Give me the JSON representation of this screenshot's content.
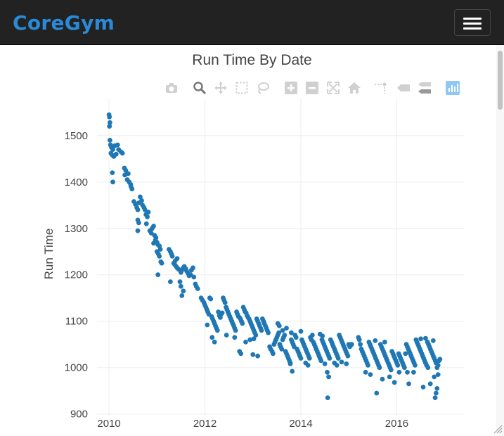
{
  "navbar": {
    "brand": "CoreGym",
    "brand_color": "#2a8ad8",
    "background": "#222222"
  },
  "modebar": {
    "icons": [
      "camera-icon",
      "zoom-icon",
      "pan-icon",
      "box-select-icon",
      "lasso-select-icon",
      "zoom-in-icon",
      "zoom-out-icon",
      "autoscale-icon",
      "reset-axes-icon",
      "spike-lines-icon",
      "hover-closest-icon",
      "hover-compare-icon",
      "plotly-logo-icon"
    ]
  },
  "chart_data": {
    "type": "scatter",
    "title": "Run Time By Date",
    "xlabel": "",
    "ylabel": "Run Time",
    "x_ticks": [
      "2010",
      "2012",
      "2014",
      "2016"
    ],
    "y_ticks": [
      900,
      1000,
      1100,
      1200,
      1300,
      1400,
      1500
    ],
    "xlim": [
      2009.75,
      2017.4
    ],
    "ylim": [
      895,
      1580
    ],
    "grid": true,
    "marker_color": "#1f77b4",
    "points": [
      [
        2010.0,
        1545
      ],
      [
        2010.01,
        1540
      ],
      [
        2010.02,
        1528
      ],
      [
        2010.01,
        1520
      ],
      [
        2010.02,
        1490
      ],
      [
        2010.03,
        1480
      ],
      [
        2010.05,
        1475
      ],
      [
        2010.08,
        1470
      ],
      [
        2010.04,
        1462
      ],
      [
        2010.07,
        1458
      ],
      [
        2010.12,
        1478
      ],
      [
        2010.18,
        1480
      ],
      [
        2010.2,
        1470
      ],
      [
        2010.15,
        1460
      ],
      [
        2010.25,
        1465
      ],
      [
        2010.28,
        1462
      ],
      [
        2010.1,
        1455
      ],
      [
        2010.07,
        1420
      ],
      [
        2010.08,
        1400
      ],
      [
        2010.32,
        1430
      ],
      [
        2010.35,
        1425
      ],
      [
        2010.33,
        1415
      ],
      [
        2010.38,
        1405
      ],
      [
        2010.4,
        1418
      ],
      [
        2010.42,
        1400
      ],
      [
        2010.45,
        1395
      ],
      [
        2010.46,
        1390
      ],
      [
        2010.48,
        1385
      ],
      [
        2010.52,
        1358
      ],
      [
        2010.55,
        1352
      ],
      [
        2010.58,
        1345
      ],
      [
        2010.6,
        1340
      ],
      [
        2010.62,
        1355
      ],
      [
        2010.65,
        1368
      ],
      [
        2010.68,
        1360
      ],
      [
        2010.7,
        1350
      ],
      [
        2010.73,
        1345
      ],
      [
        2010.75,
        1340
      ],
      [
        2010.77,
        1330
      ],
      [
        2010.8,
        1325
      ],
      [
        2010.82,
        1335
      ],
      [
        2010.6,
        1318
      ],
      [
        2010.62,
        1312
      ],
      [
        2010.6,
        1295
      ],
      [
        2010.78,
        1310
      ],
      [
        2010.85,
        1295
      ],
      [
        2010.88,
        1290
      ],
      [
        2010.9,
        1300
      ],
      [
        2010.93,
        1305
      ],
      [
        2010.95,
        1285
      ],
      [
        2010.97,
        1275
      ],
      [
        2011.0,
        1270
      ],
      [
        2011.02,
        1265
      ],
      [
        2011.05,
        1262
      ],
      [
        2011.07,
        1255
      ],
      [
        2011.0,
        1250
      ],
      [
        2011.03,
        1245
      ],
      [
        2011.05,
        1240
      ],
      [
        2010.93,
        1268
      ],
      [
        2010.98,
        1280
      ],
      [
        2011.08,
        1228
      ],
      [
        2011.1,
        1225
      ],
      [
        2011.02,
        1200
      ],
      [
        2011.25,
        1255
      ],
      [
        2011.28,
        1250
      ],
      [
        2011.3,
        1245
      ],
      [
        2011.32,
        1240
      ],
      [
        2011.35,
        1225
      ],
      [
        2011.37,
        1222
      ],
      [
        2011.4,
        1218
      ],
      [
        2011.42,
        1215
      ],
      [
        2011.45,
        1212
      ],
      [
        2011.48,
        1210
      ],
      [
        2011.5,
        1205
      ],
      [
        2011.52,
        1210
      ],
      [
        2011.55,
        1215
      ],
      [
        2011.57,
        1218
      ],
      [
        2011.6,
        1213
      ],
      [
        2011.62,
        1208
      ],
      [
        2011.65,
        1203
      ],
      [
        2011.67,
        1198
      ],
      [
        2011.7,
        1200
      ],
      [
        2011.72,
        1210
      ],
      [
        2011.75,
        1215
      ],
      [
        2011.77,
        1195
      ],
      [
        2011.8,
        1180
      ],
      [
        2011.82,
        1175
      ],
      [
        2011.85,
        1170
      ],
      [
        2011.48,
        1185
      ],
      [
        2011.5,
        1175
      ],
      [
        2011.55,
        1165
      ],
      [
        2011.38,
        1230
      ],
      [
        2011.42,
        1235
      ],
      [
        2011.28,
        1185
      ],
      [
        2011.52,
        1155
      ],
      [
        2011.92,
        1150
      ],
      [
        2011.95,
        1145
      ],
      [
        2011.98,
        1140
      ],
      [
        2012.0,
        1135
      ],
      [
        2012.02,
        1130
      ],
      [
        2012.04,
        1125
      ],
      [
        2012.06,
        1120
      ],
      [
        2012.08,
        1115
      ],
      [
        2012.1,
        1150
      ],
      [
        2012.12,
        1148
      ],
      [
        2012.14,
        1110
      ],
      [
        2012.16,
        1105
      ],
      [
        2012.18,
        1100
      ],
      [
        2012.2,
        1095
      ],
      [
        2012.22,
        1090
      ],
      [
        2012.24,
        1085
      ],
      [
        2012.26,
        1080
      ],
      [
        2012.28,
        1120
      ],
      [
        2012.3,
        1112
      ],
      [
        2012.32,
        1108
      ],
      [
        2012.34,
        1115
      ],
      [
        2012.36,
        1118
      ],
      [
        2012.38,
        1150
      ],
      [
        2012.4,
        1145
      ],
      [
        2012.42,
        1140
      ],
      [
        2012.44,
        1130
      ],
      [
        2012.46,
        1125
      ],
      [
        2012.48,
        1120
      ],
      [
        2012.5,
        1115
      ],
      [
        2012.52,
        1110
      ],
      [
        2012.54,
        1105
      ],
      [
        2012.56,
        1100
      ],
      [
        2012.58,
        1095
      ],
      [
        2012.6,
        1090
      ],
      [
        2012.62,
        1085
      ],
      [
        2012.64,
        1080
      ],
      [
        2012.66,
        1120
      ],
      [
        2012.68,
        1115
      ],
      [
        2012.7,
        1110
      ],
      [
        2012.72,
        1108
      ],
      [
        2012.74,
        1105
      ],
      [
        2012.76,
        1100
      ],
      [
        2012.78,
        1095
      ],
      [
        2012.8,
        1130
      ],
      [
        2012.82,
        1125
      ],
      [
        2012.84,
        1120
      ],
      [
        2012.86,
        1118
      ],
      [
        2012.88,
        1112
      ],
      [
        2012.9,
        1108
      ],
      [
        2012.92,
        1105
      ],
      [
        2012.94,
        1100
      ],
      [
        2012.96,
        1095
      ],
      [
        2012.98,
        1090
      ],
      [
        2013.0,
        1085
      ],
      [
        2013.02,
        1080
      ],
      [
        2013.04,
        1075
      ],
      [
        2013.06,
        1070
      ],
      [
        2013.08,
        1105
      ],
      [
        2013.1,
        1100
      ],
      [
        2013.12,
        1095
      ],
      [
        2013.14,
        1090
      ],
      [
        2013.16,
        1085
      ],
      [
        2013.18,
        1080
      ],
      [
        2013.2,
        1105
      ],
      [
        2013.22,
        1100
      ],
      [
        2013.24,
        1095
      ],
      [
        2013.26,
        1090
      ],
      [
        2013.28,
        1085
      ],
      [
        2013.3,
        1080
      ],
      [
        2013.32,
        1075
      ],
      [
        2012.05,
        1092
      ],
      [
        2012.15,
        1065
      ],
      [
        2012.2,
        1055
      ],
      [
        2012.45,
        1070
      ],
      [
        2012.62,
        1065
      ],
      [
        2012.72,
        1035
      ],
      [
        2012.75,
        1030
      ],
      [
        2012.85,
        1055
      ],
      [
        2012.94,
        1060
      ],
      [
        2013.0,
        1028
      ],
      [
        2013.1,
        1025
      ],
      [
        2013.02,
        1062
      ],
      [
        2013.35,
        1045
      ],
      [
        2013.37,
        1040
      ],
      [
        2013.4,
        1035
      ],
      [
        2013.42,
        1030
      ],
      [
        2013.44,
        1050
      ],
      [
        2013.46,
        1055
      ],
      [
        2013.48,
        1060
      ],
      [
        2013.5,
        1065
      ],
      [
        2013.52,
        1070
      ],
      [
        2013.54,
        1075
      ],
      [
        2013.56,
        1050
      ],
      [
        2013.58,
        1045
      ],
      [
        2013.6,
        1040
      ],
      [
        2013.62,
        1060
      ],
      [
        2013.64,
        1065
      ],
      [
        2013.66,
        1070
      ],
      [
        2013.68,
        1035
      ],
      [
        2013.7,
        1030
      ],
      [
        2013.72,
        1025
      ],
      [
        2013.74,
        1020
      ],
      [
        2013.76,
        1015
      ],
      [
        2013.78,
        1010
      ],
      [
        2013.8,
        1060
      ],
      [
        2013.82,
        1055
      ],
      [
        2013.84,
        1050
      ],
      [
        2013.86,
        1045
      ],
      [
        2013.88,
        1070
      ],
      [
        2013.9,
        1065
      ],
      [
        2013.92,
        1040
      ],
      [
        2013.94,
        1035
      ],
      [
        2013.96,
        1030
      ],
      [
        2013.98,
        1025
      ],
      [
        2014.0,
        1020
      ],
      [
        2014.02,
        1060
      ],
      [
        2014.04,
        1055
      ],
      [
        2014.06,
        1050
      ],
      [
        2014.08,
        1045
      ],
      [
        2014.1,
        1040
      ],
      [
        2014.12,
        1035
      ],
      [
        2014.14,
        1030
      ],
      [
        2014.16,
        1025
      ],
      [
        2014.18,
        1020
      ],
      [
        2014.2,
        1065
      ],
      [
        2014.22,
        1060
      ],
      [
        2014.24,
        1070
      ],
      [
        2014.26,
        1055
      ],
      [
        2014.28,
        1050
      ],
      [
        2014.3,
        1045
      ],
      [
        2014.32,
        1040
      ],
      [
        2014.34,
        1035
      ],
      [
        2014.36,
        1030
      ],
      [
        2014.38,
        1025
      ],
      [
        2014.4,
        1020
      ],
      [
        2014.42,
        1015
      ],
      [
        2014.44,
        1060
      ],
      [
        2014.46,
        1055
      ],
      [
        2014.48,
        1050
      ],
      [
        2014.5,
        1045
      ],
      [
        2014.52,
        1040
      ],
      [
        2014.54,
        1035
      ],
      [
        2014.56,
        1030
      ],
      [
        2014.58,
        1025
      ],
      [
        2014.6,
        1020
      ],
      [
        2014.62,
        1060
      ],
      [
        2014.64,
        1055
      ],
      [
        2014.66,
        1050
      ],
      [
        2014.68,
        1045
      ],
      [
        2014.7,
        1040
      ],
      [
        2014.72,
        1035
      ],
      [
        2014.74,
        1030
      ],
      [
        2014.76,
        1025
      ],
      [
        2014.78,
        1020
      ],
      [
        2014.8,
        1070
      ],
      [
        2014.82,
        1065
      ],
      [
        2014.84,
        1060
      ],
      [
        2014.86,
        1055
      ],
      [
        2014.88,
        1050
      ],
      [
        2014.9,
        1045
      ],
      [
        2014.92,
        1040
      ],
      [
        2014.94,
        1035
      ],
      [
        2014.96,
        1030
      ],
      [
        2014.98,
        1025
      ],
      [
        2015.0,
        1050
      ],
      [
        2015.02,
        1045
      ],
      [
        2015.04,
        1048
      ],
      [
        2015.06,
        1050
      ],
      [
        2013.52,
        1095
      ],
      [
        2013.55,
        1090
      ],
      [
        2013.62,
        1080
      ],
      [
        2013.7,
        1085
      ],
      [
        2013.8,
        1075
      ],
      [
        2014.0,
        1078
      ],
      [
        2014.1,
        1010
      ],
      [
        2014.15,
        1005
      ],
      [
        2014.4,
        1072
      ],
      [
        2014.45,
        1068
      ],
      [
        2014.5,
        1008
      ],
      [
        2014.55,
        990
      ],
      [
        2014.58,
        980
      ],
      [
        2014.56,
        935
      ],
      [
        2014.7,
        1010
      ],
      [
        2014.75,
        1005
      ],
      [
        2014.85,
        1012
      ],
      [
        2014.95,
        1008
      ],
      [
        2013.78,
        1008
      ],
      [
        2013.82,
        992
      ],
      [
        2015.2,
        1065
      ],
      [
        2015.22,
        1060
      ],
      [
        2015.24,
        1050
      ],
      [
        2015.26,
        1040
      ],
      [
        2015.28,
        1035
      ],
      [
        2015.3,
        1030
      ],
      [
        2015.32,
        1025
      ],
      [
        2015.34,
        1020
      ],
      [
        2015.36,
        1015
      ],
      [
        2015.38,
        1010
      ],
      [
        2015.4,
        1005
      ],
      [
        2015.42,
        1055
      ],
      [
        2015.44,
        1050
      ],
      [
        2015.46,
        1045
      ],
      [
        2015.48,
        1040
      ],
      [
        2015.5,
        1035
      ],
      [
        2015.52,
        1030
      ],
      [
        2015.54,
        1025
      ],
      [
        2015.56,
        1020
      ],
      [
        2015.58,
        1015
      ],
      [
        2015.6,
        1010
      ],
      [
        2015.62,
        1005
      ],
      [
        2015.64,
        1000
      ],
      [
        2015.66,
        1050
      ],
      [
        2015.68,
        1045
      ],
      [
        2015.7,
        1040
      ],
      [
        2015.72,
        1035
      ],
      [
        2015.74,
        1030
      ],
      [
        2015.76,
        1025
      ],
      [
        2015.78,
        1020
      ],
      [
        2015.8,
        1015
      ],
      [
        2015.82,
        1010
      ],
      [
        2015.84,
        1005
      ],
      [
        2015.86,
        1000
      ],
      [
        2015.88,
        995
      ],
      [
        2015.9,
        1035
      ],
      [
        2015.92,
        1030
      ],
      [
        2015.94,
        1025
      ],
      [
        2015.96,
        1020
      ],
      [
        2015.98,
        1015
      ],
      [
        2016.0,
        1010
      ],
      [
        2016.02,
        1005
      ],
      [
        2016.04,
        1030
      ],
      [
        2016.06,
        1025
      ],
      [
        2016.08,
        1020
      ],
      [
        2016.1,
        1015
      ],
      [
        2016.12,
        1010
      ],
      [
        2016.14,
        1005
      ],
      [
        2016.16,
        1000
      ],
      [
        2016.18,
        1030
      ],
      [
        2016.2,
        1050
      ],
      [
        2016.22,
        1045
      ],
      [
        2016.24,
        1040
      ],
      [
        2016.26,
        1035
      ],
      [
        2016.28,
        1030
      ],
      [
        2016.3,
        1025
      ],
      [
        2016.32,
        1020
      ],
      [
        2016.34,
        1015
      ],
      [
        2016.36,
        1010
      ],
      [
        2016.38,
        1005
      ],
      [
        2016.4,
        1060
      ],
      [
        2016.42,
        1055
      ],
      [
        2016.44,
        1050
      ],
      [
        2016.46,
        1045
      ],
      [
        2016.48,
        1040
      ],
      [
        2016.5,
        1035
      ],
      [
        2016.52,
        1030
      ],
      [
        2016.54,
        1025
      ],
      [
        2016.56,
        1020
      ],
      [
        2016.58,
        1015
      ],
      [
        2016.6,
        1010
      ],
      [
        2016.62,
        1005
      ],
      [
        2016.64,
        1055
      ],
      [
        2016.66,
        1050
      ],
      [
        2016.68,
        1045
      ],
      [
        2016.7,
        1040
      ],
      [
        2016.72,
        1035
      ],
      [
        2016.74,
        1030
      ],
      [
        2016.76,
        1025
      ],
      [
        2016.78,
        1020
      ],
      [
        2016.8,
        1015
      ],
      [
        2016.82,
        1010
      ],
      [
        2016.84,
        1000
      ],
      [
        2016.86,
        1005
      ],
      [
        2016.88,
        1015
      ],
      [
        2016.9,
        1018
      ],
      [
        2015.58,
        945
      ],
      [
        2015.35,
        990
      ],
      [
        2015.45,
        985
      ],
      [
        2015.7,
        975
      ],
      [
        2015.85,
        980
      ],
      [
        2015.95,
        968
      ],
      [
        2016.05,
        990
      ],
      [
        2016.25,
        965
      ],
      [
        2016.35,
        990
      ],
      [
        2016.55,
        958
      ],
      [
        2016.65,
        1000
      ],
      [
        2016.7,
        965
      ],
      [
        2016.78,
        980
      ],
      [
        2016.8,
        935
      ],
      [
        2016.82,
        945
      ],
      [
        2016.84,
        955
      ],
      [
        2016.86,
        985
      ],
      [
        2016.5,
        1062
      ],
      [
        2016.6,
        1063
      ],
      [
        2016.76,
        1058
      ],
      [
        2015.75,
        1055
      ],
      [
        2015.55,
        1058
      ],
      [
        2016.22,
        990
      ]
    ]
  }
}
